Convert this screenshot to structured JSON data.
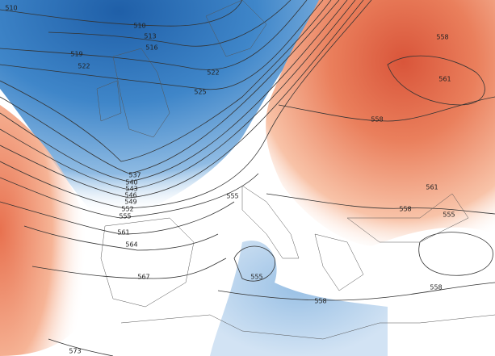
{
  "contour_labels": [
    "510",
    "510",
    "513",
    "516",
    "519",
    "522",
    "522",
    "525",
    "537",
    "540",
    "543",
    "546",
    "549",
    "552",
    "555",
    "561",
    "564",
    "567",
    "573",
    "558",
    "561",
    "558",
    "561",
    "558",
    "555",
    "555",
    "558",
    "558",
    "555"
  ]
}
